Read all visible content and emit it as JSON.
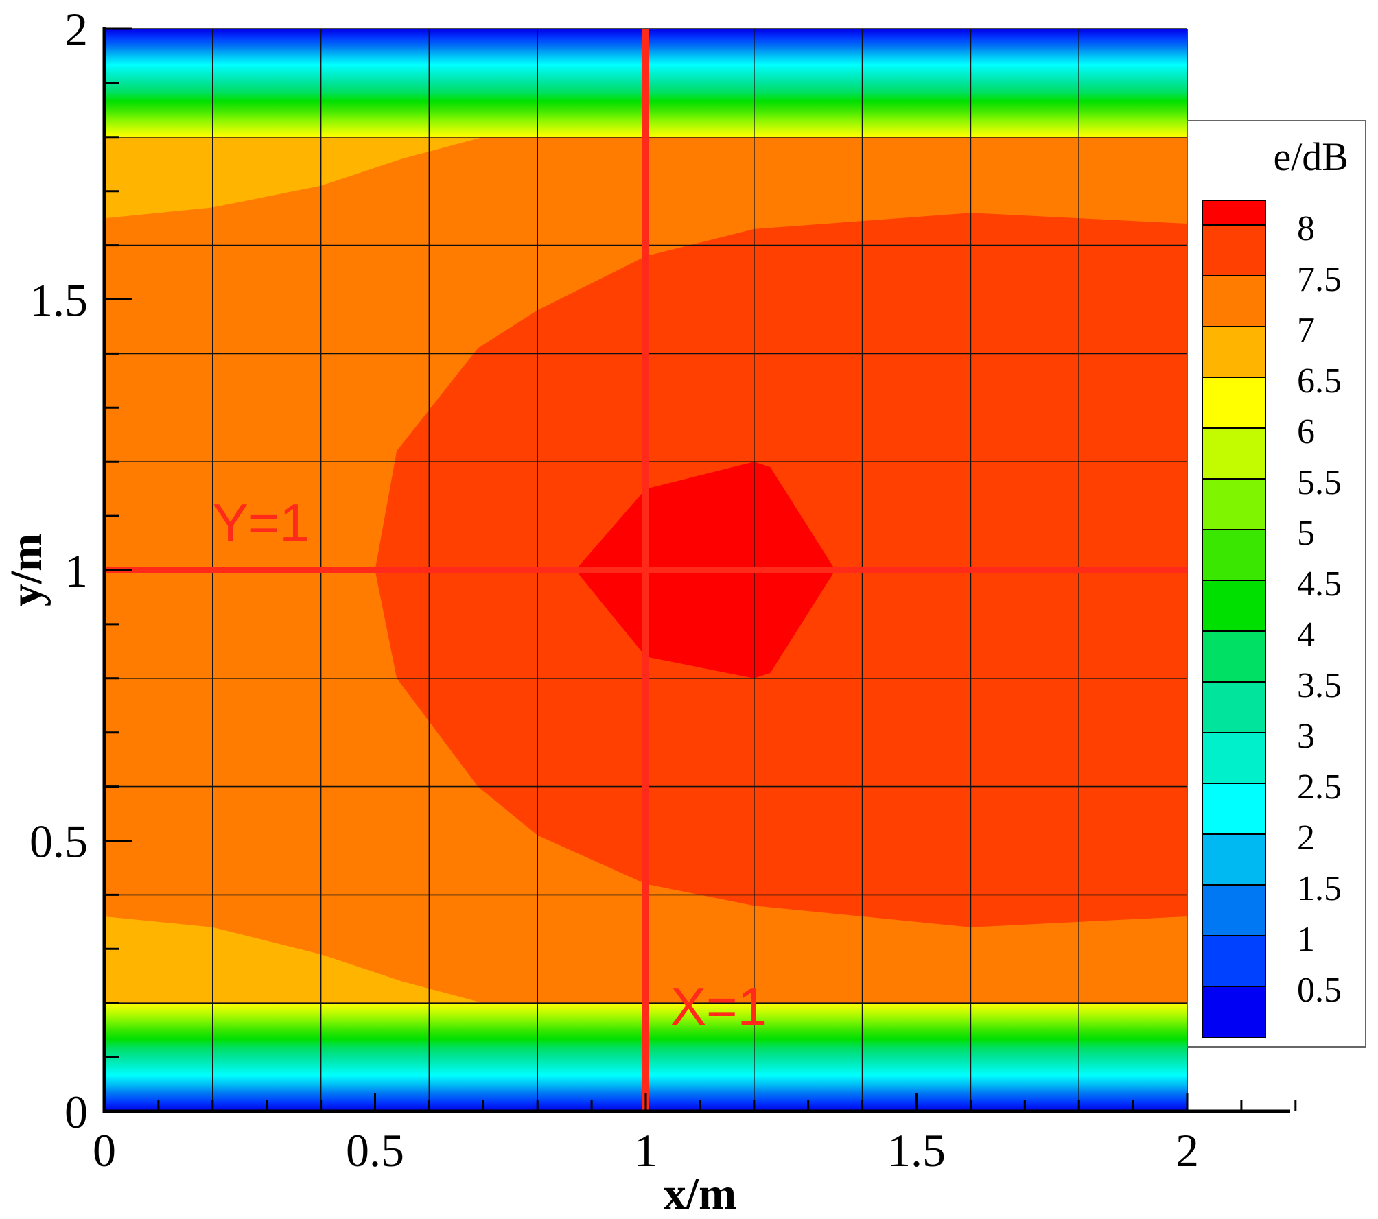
{
  "chart_data": {
    "type": "heatmap",
    "title": "",
    "xlabel": "x/m",
    "ylabel": "y/m",
    "xlim": [
      0,
      2
    ],
    "ylim": [
      0,
      2
    ],
    "x_ticks": [
      0,
      0.5,
      1,
      1.5,
      2
    ],
    "y_ticks": [
      0,
      0.5,
      1,
      1.5,
      2
    ],
    "x_tick_labels": [
      "0",
      "0.5",
      "1",
      "1.5",
      "2"
    ],
    "y_tick_labels": [
      "0",
      "0.5",
      "1",
      "1.5",
      "2"
    ],
    "grid": true,
    "grid_spacing": 0.2,
    "colorbar": {
      "title": "e/dB",
      "levels": [
        8,
        7.5,
        7,
        6.5,
        6,
        5.5,
        5,
        4.5,
        4,
        3.5,
        3,
        2.5,
        2,
        1.5,
        1,
        0.5
      ],
      "level_labels": [
        "8",
        "7.5",
        "7",
        "6.5",
        "6",
        "5.5",
        "5",
        "4.5",
        "4",
        "3.5",
        "3",
        "2.5",
        "2",
        "1.5",
        "1",
        "0.5"
      ],
      "colors": [
        "#ff0000",
        "#ff4000",
        "#ff7c00",
        "#ffb400",
        "#ffff00",
        "#c3fb00",
        "#7ff500",
        "#3ae700",
        "#00e000",
        "#00e065",
        "#00e49b",
        "#00f0cc",
        "#00ffff",
        "#00b9f3",
        "#0078f3",
        "#0041ff",
        "#0000f5"
      ]
    },
    "contours": [
      {
        "level_band": "7-7.5",
        "color": "#ff7c00",
        "x": [
          0,
          2
        ],
        "y": [
          0.2,
          1.8
        ]
      },
      {
        "level_band": "6.5-7",
        "color": "#ffb400",
        "points": [
          [
            0,
            1.65
          ],
          [
            0.2,
            1.67
          ],
          [
            0.4,
            1.71
          ],
          [
            0.55,
            1.76
          ],
          [
            0.7,
            1.8
          ],
          [
            0,
            1.8
          ]
        ]
      },
      {
        "level_band": "6.5-7",
        "color": "#ffb400",
        "points": [
          [
            0,
            0.36
          ],
          [
            0.2,
            0.34
          ],
          [
            0.4,
            0.29
          ],
          [
            0.55,
            0.24
          ],
          [
            0.7,
            0.2
          ],
          [
            0,
            0.2
          ]
        ]
      },
      {
        "level_band": "7.5-8",
        "color": "#ff4000",
        "points": [
          [
            0.5,
            1
          ],
          [
            0.54,
            1.22
          ],
          [
            0.69,
            1.41
          ],
          [
            0.8,
            1.48
          ],
          [
            1,
            1.58
          ],
          [
            1.2,
            1.63
          ],
          [
            1.6,
            1.66
          ],
          [
            2,
            1.64
          ],
          [
            2,
            0.36
          ],
          [
            1.6,
            0.34
          ],
          [
            1.2,
            0.38
          ],
          [
            1,
            0.42
          ],
          [
            0.8,
            0.51
          ],
          [
            0.69,
            0.6
          ],
          [
            0.54,
            0.8
          ]
        ]
      },
      {
        "level_band": ">8",
        "color": "#ff0000",
        "points": [
          [
            0.87,
            1
          ],
          [
            1,
            1.15
          ],
          [
            1.2,
            1.2
          ],
          [
            1.23,
            1.19
          ],
          [
            1.35,
            1
          ],
          [
            1.23,
            0.81
          ],
          [
            1.2,
            0.8
          ],
          [
            1,
            0.84
          ]
        ]
      }
    ],
    "edge_gradient": {
      "y_bottom": [
        0,
        0.2
      ],
      "y_top": [
        1.8,
        2
      ],
      "from_value": 0.5,
      "to_value": 7
    },
    "annotations": [
      {
        "text": "Y=1",
        "kind": "line",
        "axis": "y",
        "value": 1,
        "color": "#ff2a1a"
      },
      {
        "text": "X=1",
        "kind": "line",
        "axis": "x",
        "value": 1,
        "color": "#ff2a1a"
      }
    ]
  }
}
